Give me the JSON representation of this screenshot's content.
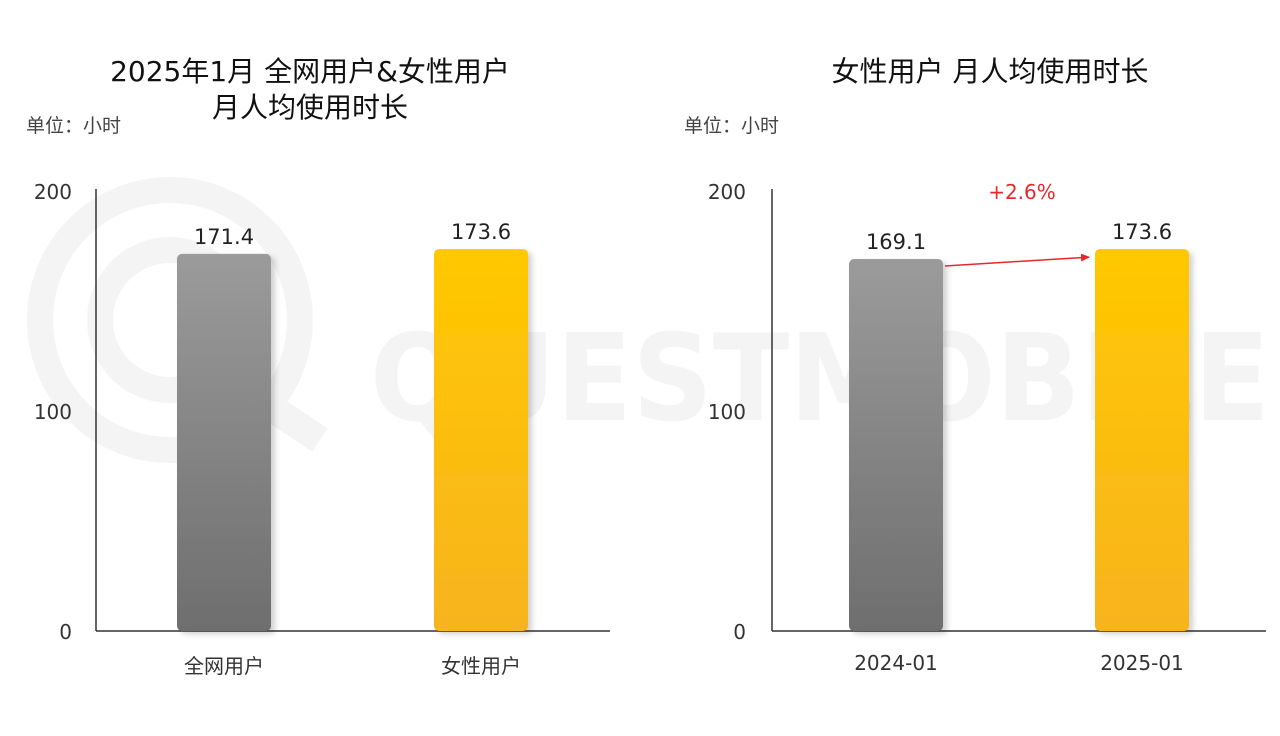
{
  "watermark": {
    "text": "QUESTMOBILE"
  },
  "colors": {
    "gray_top": "#9b9b9b",
    "gray_bottom": "#6e6e6e",
    "yellow_top": "#ffc800",
    "yellow_bottom": "#f7b41e",
    "axis": "#333333",
    "growth": "#e8272b"
  },
  "chart_data": [
    {
      "type": "bar",
      "title_line1": "2025年1月 全网用户&女性用户",
      "title_line2": "月人均使用时长",
      "unit": "单位：小时",
      "categories": [
        "全网用户",
        "女性用户"
      ],
      "values": [
        171.4,
        173.6
      ],
      "value_labels": [
        "171.4",
        "173.6"
      ],
      "ylim": [
        0,
        200
      ],
      "yticks": [
        "0",
        "100",
        "200"
      ],
      "bar_colors": [
        "gray",
        "yellow"
      ],
      "grid": false
    },
    {
      "type": "bar",
      "title_line1": "女性用户 月人均使用时长",
      "title_line2": "",
      "unit": "单位：小时",
      "categories": [
        "2024-01",
        "2025-01"
      ],
      "values": [
        169.1,
        173.6
      ],
      "value_labels": [
        "169.1",
        "173.6"
      ],
      "ylim": [
        0,
        200
      ],
      "yticks": [
        "0",
        "100",
        "200"
      ],
      "bar_colors": [
        "gray",
        "yellow"
      ],
      "grid": false,
      "annotation": {
        "text": "+2.6%",
        "from": 0,
        "to": 1
      }
    }
  ]
}
